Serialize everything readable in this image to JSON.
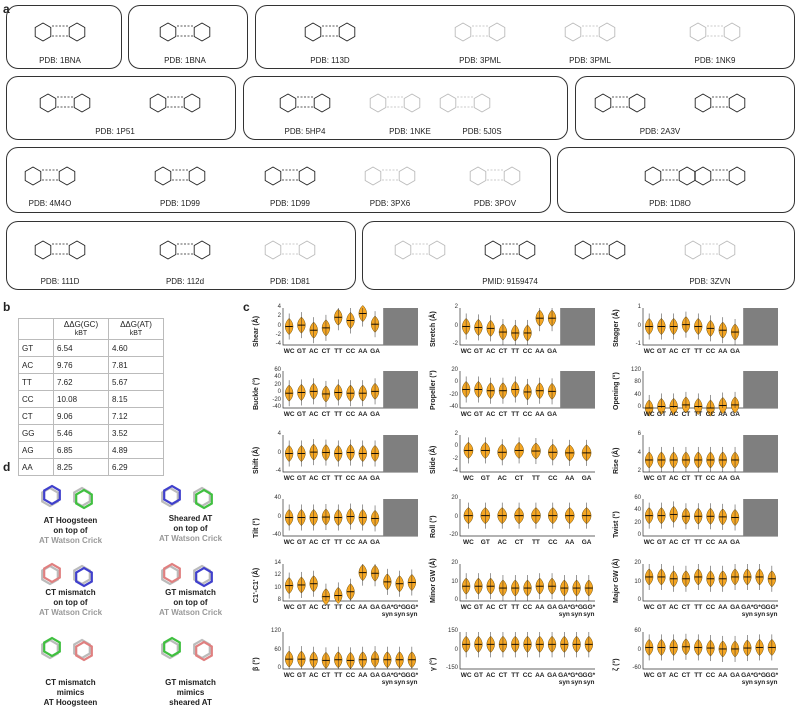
{
  "panels": {
    "a": "a",
    "b": "b",
    "c": "c",
    "d": "d"
  },
  "panel_a": {
    "row1": [
      "PDB: 1BNA",
      "PDB: 1BNA",
      "PDB: 113D",
      "PDB: 3PML",
      "PDB: 3PML",
      "PDB: 1NK9"
    ],
    "row2": [
      "PDB: 1P51",
      "PDB: 5HP4",
      "PDB: 1NKE",
      "PDB: 5J0S",
      "PDB: 2A3V"
    ],
    "row3": [
      "PDB: 4M4O",
      "PDB: 1D99",
      "PDB: 1D99",
      "PDB: 3PX6",
      "PDB: 3POV",
      "PDB: 1D8O"
    ],
    "row4": [
      "PDB: 111D",
      "PDB: 112d",
      "PDB: 1D81",
      "PMID: 9159474",
      "PDB: 3ZVN"
    ]
  },
  "table_b": {
    "headers": [
      "",
      "ΔΔG(GC)",
      "ΔΔG(AT)"
    ],
    "units": [
      "",
      "kBT",
      "kBT"
    ],
    "rows": [
      [
        "GT",
        "6.54",
        "4.60"
      ],
      [
        "AC",
        "9.76",
        "7.81"
      ],
      [
        "TT",
        "7.62",
        "5.67"
      ],
      [
        "CC",
        "10.08",
        "8.15"
      ],
      [
        "CT",
        "9.06",
        "7.12"
      ],
      [
        "GG",
        "5.46",
        "3.52"
      ],
      [
        "AG",
        "6.85",
        "4.89"
      ],
      [
        "AA",
        "8.25",
        "6.29"
      ]
    ]
  },
  "panel_c": {
    "cats8": [
      "WC",
      "GT",
      "AC",
      "CT",
      "TT",
      "CC",
      "AA",
      "GA"
    ],
    "cats11": [
      "WC",
      "GT",
      "AC",
      "CT",
      "TT",
      "CC",
      "AA",
      "GA",
      "GA*",
      "G*G",
      "GG*"
    ],
    "syn": "syn",
    "colors": {
      "violin": "#f5a623",
      "outline": "#6b4a00",
      "gray_block": "#7f7f7f"
    }
  },
  "panel_d": {
    "captions": [
      {
        "line1": "AT Hoogsteen",
        "line2": "on top of",
        "line3": "AT Watson Crick"
      },
      {
        "line1": "Sheared AT",
        "line2": "on top of",
        "line3": "AT Watson Crick"
      },
      {
        "line1": "CT mismatch",
        "line2": "on top of",
        "line3": "AT Watson Crick"
      },
      {
        "line1": "GT mismatch",
        "line2": "on top of",
        "line3": "AT Watson Crick"
      },
      {
        "line1": "CT mismatch",
        "line2": "mimics",
        "line3": "AT Hoogsteen"
      },
      {
        "line1": "GT mismatch",
        "line2": "mimics",
        "line3": "sheared AT"
      }
    ]
  },
  "chart_data": [
    {
      "type": "violin",
      "ylabel": "Shear (Å)",
      "yticks": [
        "4",
        "2",
        "0",
        "-2",
        "-4"
      ],
      "ylim": [
        -4,
        4
      ],
      "categories": [
        "WC",
        "GT",
        "AC",
        "CT",
        "TT",
        "CC",
        "AA",
        "GA"
      ],
      "medians": [
        0,
        0.3,
        -0.8,
        -0.3,
        2.0,
        1.3,
        2.8,
        0.5
      ],
      "gray_block": true
    },
    {
      "type": "violin",
      "ylabel": "Stretch (Å)",
      "yticks": [
        "2",
        "0",
        "-2"
      ],
      "ylim": [
        -2,
        2
      ],
      "categories": [
        "WC",
        "GT",
        "AC",
        "CT",
        "TT",
        "CC",
        "AA",
        "GA"
      ],
      "medians": [
        0,
        -0.1,
        -0.2,
        -0.6,
        -0.7,
        -0.7,
        0.9,
        0.9
      ],
      "gray_block": true
    },
    {
      "type": "violin",
      "ylabel": "Stagger (Å)",
      "yticks": [
        "1",
        "0",
        "-1"
      ],
      "ylim": [
        -1,
        1
      ],
      "categories": [
        "WC",
        "GT",
        "AC",
        "CT",
        "TT",
        "CC",
        "AA",
        "GA"
      ],
      "medians": [
        0,
        0,
        0,
        0.1,
        0,
        -0.1,
        -0.2,
        -0.3
      ],
      "gray_block": true
    },
    {
      "type": "violin",
      "ylabel": "Buckle (°)",
      "yticks": [
        "60",
        "40",
        "20",
        "0",
        "-20",
        "-40"
      ],
      "ylim": [
        -40,
        60
      ],
      "categories": [
        "WC",
        "GT",
        "AC",
        "CT",
        "TT",
        "CC",
        "AA",
        "GA"
      ],
      "medians": [
        0,
        2,
        5,
        -2,
        2,
        0,
        0,
        5
      ],
      "gray_block": true
    },
    {
      "type": "violin",
      "ylabel": "Propeller (°)",
      "yticks": [
        "20",
        "0",
        "-20",
        "-40"
      ],
      "ylim": [
        -40,
        20
      ],
      "categories": [
        "WC",
        "GT",
        "AC",
        "CT",
        "TT",
        "CC",
        "AA",
        "GA"
      ],
      "medians": [
        -10,
        -10,
        -12,
        -12,
        -10,
        -14,
        -12,
        -13
      ],
      "gray_block": true
    },
    {
      "type": "violin",
      "ylabel": "Opening (°)",
      "yticks": [
        "120",
        "80",
        "40",
        "0"
      ],
      "ylim": [
        0,
        120
      ],
      "categories": [
        "WC",
        "GT",
        "AC",
        "CT",
        "TT",
        "CC",
        "AA",
        "GA"
      ],
      "medians": [
        0,
        5,
        5,
        10,
        5,
        0,
        8,
        10
      ],
      "gray_block": true
    },
    {
      "type": "violin",
      "ylabel": "Shift (Å)",
      "yticks": [
        "4",
        "0",
        "-4"
      ],
      "ylim": [
        -4,
        4
      ],
      "categories": [
        "WC",
        "GT",
        "AC",
        "CT",
        "TT",
        "CC",
        "AA",
        "GA"
      ],
      "medians": [
        0,
        0,
        0.3,
        0.2,
        0,
        0.2,
        0,
        0
      ],
      "gray_block": true
    },
    {
      "type": "violin",
      "ylabel": "Slide (Å)",
      "yticks": [
        "2",
        "0",
        "-2",
        "-4"
      ],
      "ylim": [
        -4,
        2
      ],
      "categories": [
        "WC",
        "GT",
        "AC",
        "CT",
        "TT",
        "CC",
        "AA",
        "GA"
      ],
      "medians": [
        -0.5,
        -0.5,
        -0.8,
        -0.5,
        -0.6,
        -0.8,
        -0.9,
        -0.9
      ],
      "gray_block": false
    },
    {
      "type": "violin",
      "ylabel": "Rise (Å)",
      "yticks": [
        "6",
        "4",
        "2"
      ],
      "ylim": [
        2,
        6
      ],
      "categories": [
        "WC",
        "GT",
        "AC",
        "CT",
        "TT",
        "CC",
        "AA",
        "GA"
      ],
      "medians": [
        3.3,
        3.3,
        3.3,
        3.3,
        3.3,
        3.3,
        3.3,
        3.3
      ],
      "gray_block": true
    },
    {
      "type": "violin",
      "ylabel": "Tilt (°)",
      "yticks": [
        "40",
        "0",
        "-40"
      ],
      "ylim": [
        -40,
        40
      ],
      "categories": [
        "WC",
        "GT",
        "AC",
        "CT",
        "TT",
        "CC",
        "AA",
        "GA"
      ],
      "medians": [
        0,
        0,
        0,
        1,
        0,
        2,
        0,
        -2
      ],
      "gray_block": true
    },
    {
      "type": "violin",
      "ylabel": "Roll (°)",
      "yticks": [
        "20",
        "0",
        "-20"
      ],
      "ylim": [
        -20,
        20
      ],
      "categories": [
        "WC",
        "GT",
        "AC",
        "CT",
        "TT",
        "CC",
        "AA",
        "GA"
      ],
      "medians": [
        2,
        2,
        2,
        2,
        2,
        2,
        2,
        2
      ],
      "gray_block": false
    },
    {
      "type": "violin",
      "ylabel": "Twist (°)",
      "yticks": [
        "60",
        "40",
        "20",
        "0"
      ],
      "ylim": [
        0,
        60
      ],
      "categories": [
        "WC",
        "GT",
        "AC",
        "CT",
        "TT",
        "CC",
        "AA",
        "GA"
      ],
      "medians": [
        33,
        33,
        35,
        32,
        32,
        32,
        31,
        30
      ],
      "gray_block": true
    },
    {
      "type": "violin",
      "ylabel": "C1'-C1' (Å)",
      "yticks": [
        "14",
        "12",
        "10",
        "8"
      ],
      "ylim": [
        8,
        14
      ],
      "categories": [
        "WC",
        "GT",
        "AC",
        "CT",
        "TT",
        "CC",
        "AA",
        "GA",
        "GA*",
        "G*G",
        "GG*"
      ],
      "medians": [
        10.5,
        10.6,
        10.8,
        8.7,
        8.9,
        9.5,
        12.6,
        12.5,
        11.1,
        10.8,
        11.0
      ],
      "gray_block": false
    },
    {
      "type": "violin",
      "ylabel": "Minor GW (Å)",
      "yticks": [
        "20",
        "10",
        "0"
      ],
      "ylim": [
        0,
        20
      ],
      "categories": [
        "WC",
        "GT",
        "AC",
        "CT",
        "TT",
        "CC",
        "AA",
        "GA",
        "GA*",
        "G*G",
        "GG*"
      ],
      "medians": [
        8,
        8,
        8,
        7,
        7,
        7,
        8,
        8,
        7,
        7,
        7
      ],
      "gray_block": false
    },
    {
      "type": "violin",
      "ylabel": "Major GW (Å)",
      "yticks": [
        "20",
        "10",
        "0"
      ],
      "ylim": [
        0,
        20
      ],
      "categories": [
        "WC",
        "GT",
        "AC",
        "CT",
        "TT",
        "CC",
        "AA",
        "GA",
        "GA*",
        "G*G",
        "GG*"
      ],
      "medians": [
        13,
        13,
        12,
        12,
        13,
        12,
        12,
        13,
        13,
        13,
        12
      ],
      "gray_block": false
    },
    {
      "type": "violin",
      "ylabel": "β (°)",
      "yticks": [
        "120",
        "60",
        "0"
      ],
      "ylim": [
        0,
        120
      ],
      "categories": [
        "WC",
        "GT",
        "AC",
        "CT",
        "TT",
        "CC",
        "AA",
        "GA",
        "GA*",
        "G*G",
        "GG*"
      ],
      "medians": [
        32,
        32,
        30,
        28,
        30,
        28,
        30,
        32,
        30,
        30,
        30
      ],
      "gray_block": false
    },
    {
      "type": "violin",
      "ylabel": "γ (°)",
      "yticks": [
        "150",
        "0",
        "-150"
      ],
      "ylim": [
        -150,
        150
      ],
      "categories": [
        "WC",
        "GT",
        "AC",
        "CT",
        "TT",
        "CC",
        "AA",
        "GA",
        "GA*",
        "G*G",
        "GG*"
      ],
      "medians": [
        50,
        50,
        50,
        50,
        50,
        50,
        50,
        50,
        50,
        50,
        50
      ],
      "gray_block": false
    },
    {
      "type": "violin",
      "ylabel": "ζ (°)",
      "yticks": [
        "60",
        "0",
        "-60"
      ],
      "ylim": [
        -60,
        60
      ],
      "categories": [
        "WC",
        "GT",
        "AC",
        "CT",
        "TT",
        "CC",
        "AA",
        "GA",
        "GA*",
        "G*G",
        "GG*"
      ],
      "medians": [
        10,
        10,
        10,
        12,
        10,
        8,
        5,
        5,
        8,
        10,
        10
      ],
      "gray_block": false
    }
  ]
}
